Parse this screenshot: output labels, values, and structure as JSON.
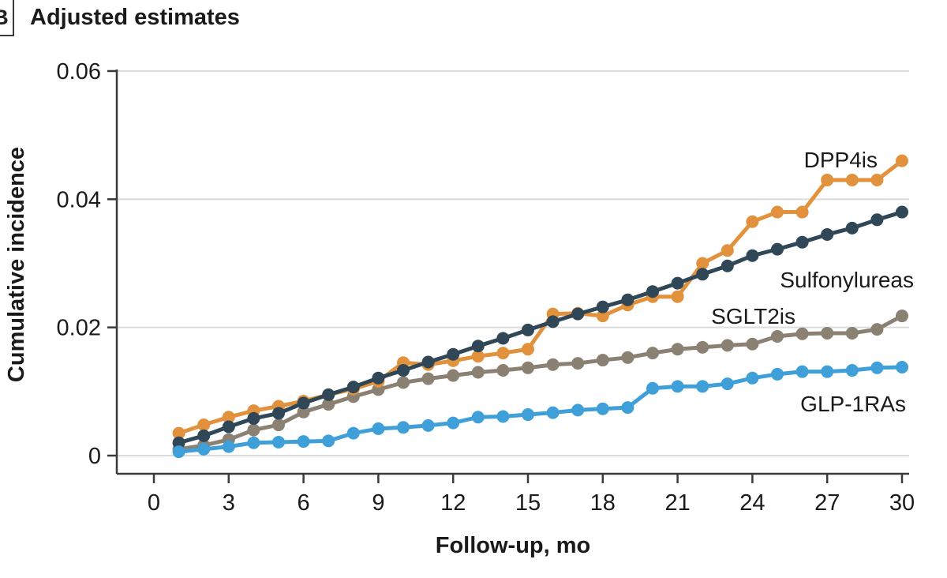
{
  "panel": {
    "label": "B",
    "title": "Adjusted estimates"
  },
  "colors": {
    "dpp4is": "#E2913D",
    "sulfonylureas": "#2F4756",
    "sglt2is": "#8B8173",
    "glp1ras": "#3FA0D9",
    "gridline": "#DCDCDC",
    "axis": "#3A3A3A",
    "text": "#1A1A1A"
  },
  "chart_data": {
    "type": "line",
    "title": "Adjusted estimates",
    "xlabel": "Follow-up, mo",
    "ylabel": "Cumulative incidence",
    "xlim": [
      0,
      30
    ],
    "ylim": [
      0,
      0.06
    ],
    "x_ticks": [
      0,
      3,
      6,
      9,
      12,
      15,
      18,
      21,
      24,
      27,
      30
    ],
    "y_ticks": [
      0,
      0.02,
      0.04,
      0.06
    ],
    "y_tick_labels": [
      "0",
      "0.02",
      "0.04",
      "0.06"
    ],
    "grid": "horizontal",
    "legend": "inline-labels-right",
    "x": [
      1,
      2,
      3,
      4,
      5,
      6,
      7,
      8,
      9,
      10,
      11,
      12,
      13,
      14,
      15,
      16,
      17,
      18,
      19,
      20,
      21,
      22,
      23,
      24,
      25,
      26,
      27,
      28,
      29,
      30
    ],
    "series": [
      {
        "name": "DPP4is",
        "color": "#E2913D",
        "values": [
          0.0035,
          0.0048,
          0.006,
          0.007,
          0.0077,
          0.0085,
          0.0095,
          0.0104,
          0.0116,
          0.0145,
          0.0142,
          0.0148,
          0.0155,
          0.016,
          0.0166,
          0.0221,
          0.0222,
          0.0218,
          0.0235,
          0.0248,
          0.0248,
          0.03,
          0.032,
          0.0365,
          0.038,
          0.038,
          0.043,
          0.043,
          0.043,
          0.046
        ]
      },
      {
        "name": "Sulfonylureas",
        "color": "#2F4756",
        "values": [
          0.002,
          0.0031,
          0.0045,
          0.0058,
          0.0066,
          0.0082,
          0.0095,
          0.0107,
          0.0121,
          0.0133,
          0.0146,
          0.0158,
          0.0171,
          0.0183,
          0.0196,
          0.0209,
          0.0221,
          0.0232,
          0.0243,
          0.0256,
          0.0269,
          0.0283,
          0.0296,
          0.0312,
          0.0322,
          0.0333,
          0.0345,
          0.0355,
          0.0368,
          0.038
        ]
      },
      {
        "name": "SGLT2is",
        "color": "#8B8173",
        "values": [
          0.001,
          0.0016,
          0.0025,
          0.004,
          0.0048,
          0.0068,
          0.008,
          0.0092,
          0.0103,
          0.0114,
          0.012,
          0.0125,
          0.013,
          0.0133,
          0.0137,
          0.0142,
          0.0144,
          0.0149,
          0.0153,
          0.016,
          0.0166,
          0.0169,
          0.0172,
          0.0174,
          0.0186,
          0.019,
          0.0191,
          0.0191,
          0.0197,
          0.0218
        ]
      },
      {
        "name": "GLP-1RAs",
        "color": "#3FA0D9",
        "values": [
          0.0006,
          0.001,
          0.0014,
          0.002,
          0.0021,
          0.0022,
          0.0023,
          0.0035,
          0.0042,
          0.0044,
          0.0047,
          0.0051,
          0.006,
          0.0061,
          0.0064,
          0.0067,
          0.0071,
          0.0073,
          0.0075,
          0.0105,
          0.0108,
          0.0108,
          0.0112,
          0.0121,
          0.0127,
          0.0131,
          0.0131,
          0.0133,
          0.0137,
          0.0138
        ]
      }
    ]
  }
}
